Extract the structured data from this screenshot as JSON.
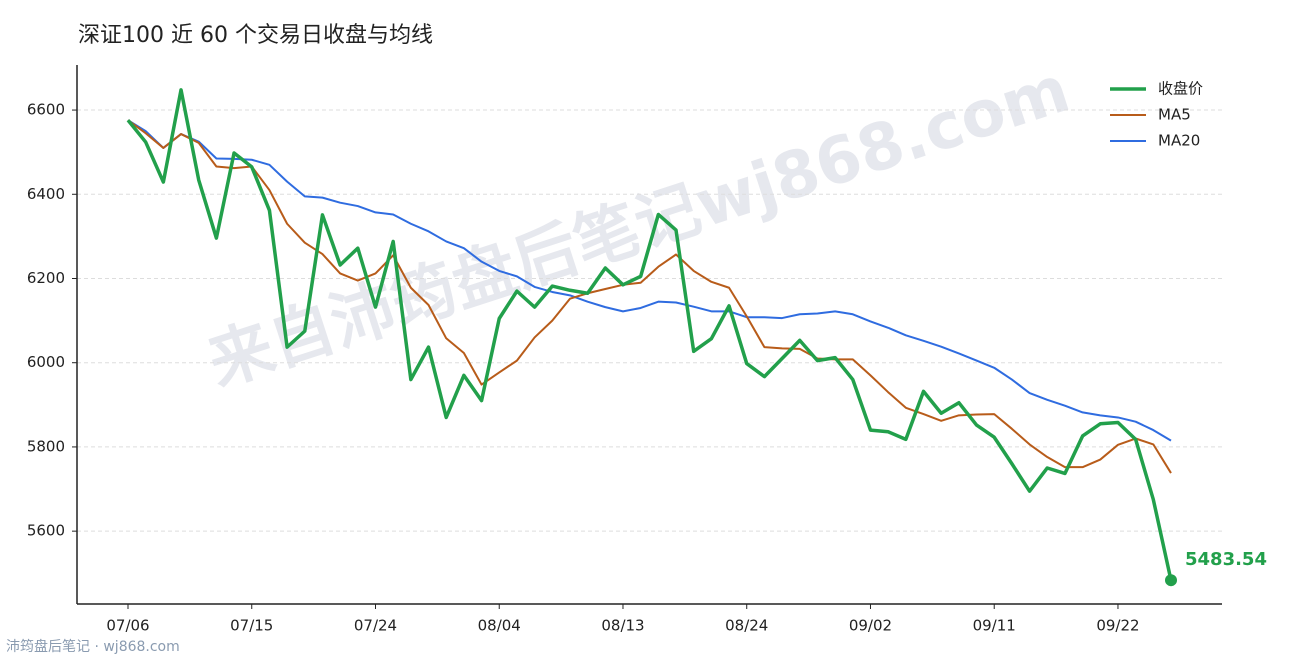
{
  "chart_data": {
    "type": "line",
    "title": "深证100 近 60 个交易日收盘与均线",
    "watermark": "来自沛筠盘后笔记wj868.com",
    "source": "沛筠盘后笔记 · wj868.com",
    "categories": [
      "07/06",
      null,
      null,
      null,
      null,
      null,
      null,
      "07/15",
      null,
      null,
      null,
      null,
      null,
      null,
      "07/24",
      null,
      null,
      null,
      null,
      null,
      null,
      "08/04",
      null,
      null,
      null,
      null,
      null,
      null,
      "08/13",
      null,
      null,
      null,
      null,
      null,
      null,
      "08/24",
      null,
      null,
      null,
      null,
      null,
      null,
      "09/02",
      null,
      null,
      null,
      null,
      null,
      null,
      "09/11",
      null,
      null,
      null,
      null,
      null,
      null,
      "09/22",
      null,
      null,
      null
    ],
    "series": [
      {
        "name": "收盘价",
        "color": "#22a04b",
        "width": 3.5,
        "values": [
          6576,
          6524,
          6429,
          6648,
          6434,
          6296,
          6498,
          6465,
          6362,
          6037,
          6075,
          6351,
          6232,
          6272,
          6132,
          6288,
          5960,
          6037,
          5870,
          5970,
          5910,
          6105,
          6170,
          6132,
          6182,
          6172,
          6165,
          6225,
          6185,
          6205,
          6352,
          6315,
          6027,
          6057,
          6135,
          5998,
          5967,
          6010,
          6053,
          6005,
          6012,
          5960,
          5840,
          5836,
          5818,
          5932,
          5880,
          5905,
          5852,
          5823,
          5760,
          5695,
          5750,
          5737,
          5826,
          5855,
          5858,
          5818,
          5675,
          5483.54
        ]
      },
      {
        "name": "MA5",
        "color": "#b85c1a",
        "width": 2,
        "values": [
          6576,
          6545,
          6510,
          6543,
          6522,
          6466,
          6462,
          6466,
          6410,
          6330,
          6285,
          6258,
          6212,
          6195,
          6212,
          6255,
          6178,
          6137,
          6058,
          6023,
          5948,
          5977,
          6005,
          6060,
          6100,
          6152,
          6165,
          6175,
          6185,
          6190,
          6228,
          6257,
          6218,
          6192,
          6178,
          6110,
          6037,
          6034,
          6033,
          6010,
          6008,
          6008,
          5970,
          5930,
          5893,
          5878,
          5862,
          5875,
          5877,
          5878,
          5843,
          5806,
          5776,
          5752,
          5752,
          5770,
          5805,
          5820,
          5806,
          5738
        ]
      },
      {
        "name": "MA20",
        "color": "#2f6ce0",
        "width": 2,
        "values": [
          6576,
          6550,
          6510,
          6543,
          6525,
          6485,
          6484,
          6482,
          6470,
          6430,
          6395,
          6392,
          6380,
          6372,
          6357,
          6352,
          6330,
          6312,
          6288,
          6272,
          6240,
          6218,
          6205,
          6180,
          6168,
          6160,
          6145,
          6132,
          6122,
          6130,
          6145,
          6143,
          6133,
          6122,
          6122,
          6108,
          6108,
          6106,
          6115,
          6117,
          6122,
          6115,
          6098,
          6083,
          6065,
          6052,
          6038,
          6022,
          6005,
          5988,
          5960,
          5928,
          5912,
          5898,
          5882,
          5875,
          5870,
          5860,
          5840,
          5815
        ]
      }
    ],
    "ylim": [
      5427,
      6707
    ],
    "yticks": [
      5600,
      5800,
      6000,
      6200,
      6400,
      6600
    ],
    "grid": true,
    "legend": "upper right"
  }
}
